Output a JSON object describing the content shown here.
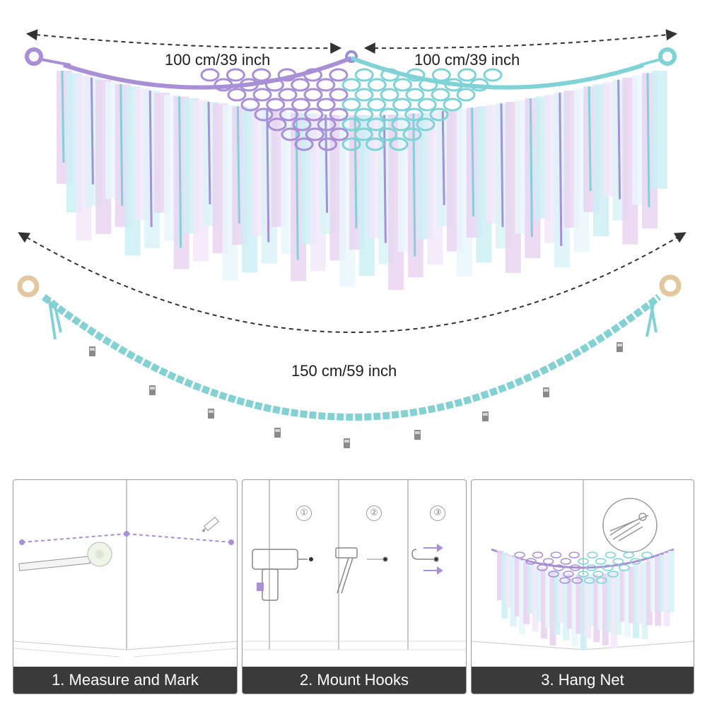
{
  "dimensions": {
    "top_left": "100 cm/39 inch",
    "top_right": "100 cm/39 inch",
    "bottom": "150 cm/59 inch"
  },
  "steps": [
    {
      "label": "1. Measure and Mark"
    },
    {
      "label": "2. Mount Hooks",
      "substeps": [
        "①",
        "②",
        "③"
      ]
    },
    {
      "label": "3. Hang Net"
    }
  ],
  "colors": {
    "purple": "#a98fd6",
    "teal": "#7fd3d6",
    "pink": "#ead3f1",
    "tulle_blue": "#cdeff4",
    "bar": "#3a3a3a"
  }
}
